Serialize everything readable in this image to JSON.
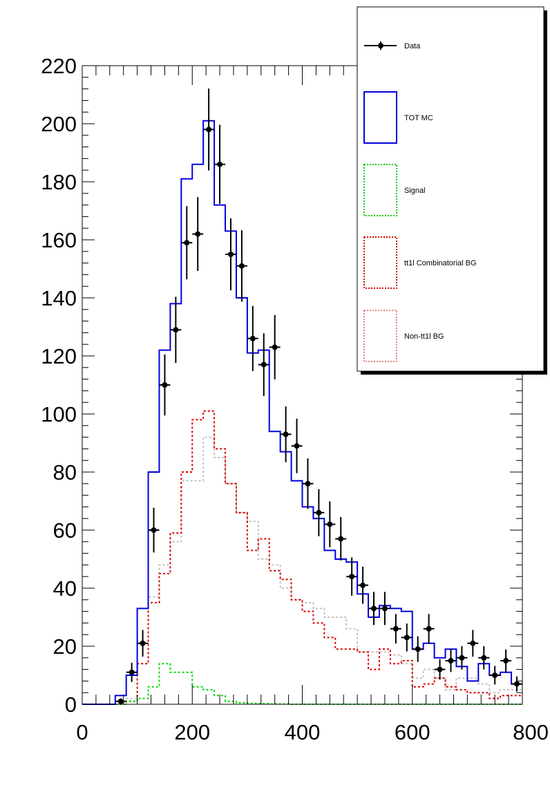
{
  "chart_data": {
    "type": "histogram",
    "title": "",
    "xlabel": "",
    "ylabel": "",
    "xlim": [
      0,
      800
    ],
    "ylim": [
      0,
      220
    ],
    "bin_width": 20,
    "grid": false,
    "legend_position": "top-right",
    "x_ticks": [
      "0",
      "200",
      "400",
      "600",
      "800"
    ],
    "y_ticks": [
      "0",
      "20",
      "40",
      "60",
      "80",
      "100",
      "120",
      "140",
      "160",
      "180",
      "200",
      "220"
    ],
    "legend": [
      {
        "label": "Data",
        "style": "marker"
      },
      {
        "label": "TOT MC",
        "style": "box-solid",
        "color": "#0000dd"
      },
      {
        "label": "Signal",
        "style": "box-dotted",
        "color": "#00cc00"
      },
      {
        "label": "tt1l Combinatorial BG",
        "style": "box-dotted",
        "color": "#dd0000"
      },
      {
        "label": "Non-tt1l BG",
        "style": "box-dotted-thin",
        "color": "#dd0000"
      }
    ],
    "bin_edges": [
      0,
      20,
      40,
      60,
      80,
      100,
      120,
      140,
      160,
      180,
      200,
      220,
      240,
      260,
      280,
      300,
      320,
      340,
      360,
      380,
      400,
      420,
      440,
      460,
      480,
      500,
      520,
      540,
      560,
      580,
      600,
      620,
      640,
      660,
      680,
      700,
      720,
      740,
      760,
      780,
      800
    ],
    "series": [
      {
        "name": "TOT MC",
        "color": "#0000dd",
        "dash": "solid",
        "values": [
          0,
          0,
          0,
          3,
          10,
          33,
          80,
          122,
          138,
          181,
          186,
          201,
          172,
          163,
          140,
          121,
          122,
          94,
          87,
          77,
          68,
          64,
          53,
          50,
          49,
          38,
          30,
          34,
          33,
          32,
          19,
          21,
          16,
          19,
          13,
          8,
          14,
          10,
          11,
          7
        ]
      },
      {
        "name": "Signal",
        "color": "#00dd00",
        "dash": "dotted",
        "values": [
          0,
          0,
          0,
          0,
          1,
          2,
          6,
          14,
          11,
          11,
          6,
          5,
          3,
          1,
          0.5,
          0.3,
          0.2,
          0.1,
          0.1,
          0,
          0,
          0,
          0,
          0,
          0,
          0,
          0,
          0,
          0,
          0,
          0,
          0,
          0,
          0,
          0,
          0,
          0,
          0,
          0,
          0
        ]
      },
      {
        "name": "tt1l Combinatorial BG",
        "color": "#dd0000",
        "dash": "dotted",
        "values": [
          0,
          0,
          0,
          0,
          1,
          14,
          35,
          45,
          59,
          80,
          98,
          101,
          88,
          76,
          66,
          53,
          57,
          46,
          43,
          36,
          32,
          28,
          23,
          19,
          19,
          18,
          12,
          19,
          14,
          15,
          6,
          7,
          9,
          6,
          5,
          4,
          4,
          2,
          3,
          3
        ]
      },
      {
        "name": "Non-tt1l BG",
        "color": "#c0c0c0",
        "dash": "dotted",
        "values": [
          0,
          0,
          0,
          0,
          2,
          14,
          37,
          48,
          56,
          77,
          77,
          92,
          85,
          76,
          66,
          63,
          50,
          48,
          40,
          36,
          35,
          33,
          30,
          30,
          26,
          18,
          18,
          18,
          17,
          14,
          9,
          12,
          9,
          5,
          9,
          9,
          7,
          4,
          5,
          5
        ]
      }
    ],
    "data_points": {
      "name": "Data",
      "x": [
        70,
        90,
        110,
        130,
        150,
        170,
        190,
        210,
        230,
        250,
        270,
        290,
        310,
        330,
        350,
        370,
        390,
        410,
        430,
        450,
        470,
        490,
        510,
        530,
        550,
        570,
        590,
        610,
        630,
        650,
        670,
        690,
        710,
        730,
        750,
        770,
        790
      ],
      "y": [
        1,
        11,
        21,
        60,
        110,
        129,
        159,
        162,
        198,
        186,
        155,
        151,
        126,
        117,
        123,
        93,
        89,
        76,
        66,
        62,
        57,
        44,
        41,
        33,
        33,
        26,
        23,
        19,
        26,
        12,
        15,
        16,
        21,
        16,
        10,
        15,
        7
      ],
      "err": [
        1,
        3.3,
        4.6,
        7.7,
        10.5,
        11.4,
        12.6,
        12.7,
        14.1,
        13.6,
        12.4,
        12.3,
        11.2,
        10.8,
        11.1,
        9.6,
        9.4,
        8.7,
        8.1,
        7.9,
        7.5,
        6.6,
        6.4,
        5.7,
        5.7,
        5.1,
        4.8,
        4.4,
        5.1,
        3.5,
        3.9,
        4,
        4.6,
        4,
        3.2,
        3.9,
        2.6
      ]
    }
  }
}
